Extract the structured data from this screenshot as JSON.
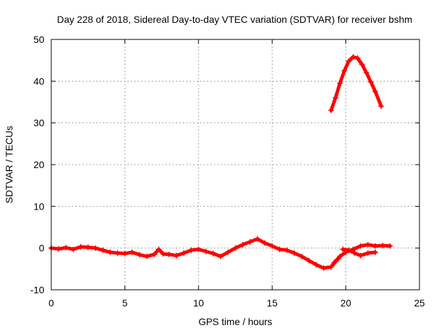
{
  "chart_data": {
    "type": "scatter",
    "title": "Day 228 of 2018, Sidereal Day-to-day VTEC variation (SDTVAR) for receiver bshm",
    "xlabel": "GPS time / hours",
    "ylabel": "SDTVAR / TECUs",
    "xlim": [
      0,
      25
    ],
    "ylim": [
      -10,
      50
    ],
    "xticks": [
      0,
      5,
      10,
      15,
      20,
      25
    ],
    "yticks": [
      -10,
      0,
      10,
      20,
      30,
      40,
      50
    ],
    "grid": true,
    "marker": "+",
    "series": [
      {
        "name": "SDTVAR",
        "color": "#ff0000",
        "segments": [
          [
            [
              0.0,
              0.0
            ],
            [
              0.5,
              -0.2
            ],
            [
              1.0,
              0.1
            ],
            [
              1.5,
              -0.3
            ],
            [
              2.0,
              0.3
            ],
            [
              2.5,
              0.2
            ],
            [
              3.0,
              0.0
            ],
            [
              3.5,
              -0.5
            ],
            [
              4.0,
              -1.0
            ],
            [
              4.5,
              -1.2
            ],
            [
              5.0,
              -1.3
            ],
            [
              5.5,
              -1.0
            ],
            [
              6.0,
              -1.6
            ],
            [
              6.5,
              -2.0
            ],
            [
              7.0,
              -1.5
            ],
            [
              7.3,
              -0.3
            ],
            [
              7.6,
              -1.4
            ],
            [
              8.0,
              -1.5
            ],
            [
              8.5,
              -1.8
            ],
            [
              9.0,
              -1.2
            ],
            [
              9.5,
              -0.5
            ],
            [
              10.0,
              -0.3
            ],
            [
              10.5,
              -0.8
            ],
            [
              11.0,
              -1.3
            ],
            [
              11.5,
              -2.0
            ],
            [
              12.0,
              -1.0
            ],
            [
              12.5,
              0.0
            ],
            [
              13.0,
              0.8
            ],
            [
              13.5,
              1.5
            ],
            [
              14.0,
              2.2
            ],
            [
              14.5,
              1.2
            ],
            [
              15.0,
              0.5
            ],
            [
              15.5,
              -0.3
            ],
            [
              16.0,
              -0.5
            ],
            [
              16.5,
              -1.2
            ],
            [
              17.0,
              -2.0
            ],
            [
              17.5,
              -3.0
            ],
            [
              18.0,
              -4.0
            ],
            [
              18.5,
              -4.8
            ],
            [
              19.0,
              -4.5
            ],
            [
              19.5,
              -2.5
            ]
          ],
          [
            [
              19.2,
              -3.5
            ],
            [
              19.6,
              -2.0
            ],
            [
              20.0,
              -1.0
            ],
            [
              20.5,
              -0.3
            ],
            [
              21.0,
              0.5
            ],
            [
              21.5,
              0.8
            ],
            [
              22.0,
              0.5
            ],
            [
              22.5,
              0.6
            ],
            [
              23.0,
              0.5
            ]
          ],
          [
            [
              19.8,
              -0.3
            ],
            [
              20.2,
              -0.5
            ],
            [
              20.6,
              -1.2
            ],
            [
              21.0,
              -1.8
            ],
            [
              21.5,
              -1.2
            ],
            [
              22.0,
              -1.0
            ]
          ],
          [
            [
              19.0,
              33.0
            ],
            [
              19.3,
              36.0
            ],
            [
              19.6,
              39.5
            ],
            [
              19.9,
              42.5
            ],
            [
              20.2,
              44.8
            ],
            [
              20.5,
              45.8
            ],
            [
              20.8,
              45.5
            ],
            [
              21.1,
              44.0
            ],
            [
              21.4,
              42.0
            ],
            [
              21.7,
              39.8
            ],
            [
              22.0,
              37.5
            ],
            [
              22.4,
              34.0
            ]
          ]
        ]
      }
    ]
  }
}
